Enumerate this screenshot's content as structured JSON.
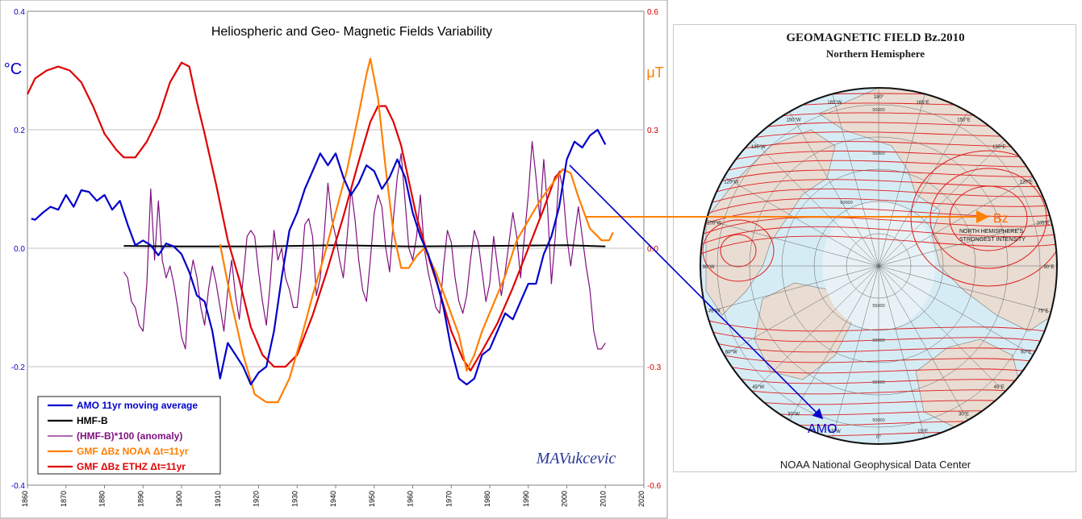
{
  "chart_data": [
    {
      "type": "line",
      "title": "Heliospheric and Geo- Magnetic Fields Variability",
      "signature": "MAVukcevic",
      "x_ticks": [
        1860,
        1870,
        1880,
        1890,
        1900,
        1910,
        1920,
        1930,
        1940,
        1950,
        1960,
        1970,
        1980,
        1990,
        2000,
        2010,
        2020
      ],
      "xlim": [
        1860,
        2020
      ],
      "left_axis": {
        "label": "°C",
        "ylim": [
          -0.4,
          0.4
        ],
        "ticks": [
          -0.4,
          -0.2,
          0.0,
          0.2,
          0.4
        ],
        "tick_labels": [
          "-0.4",
          "-0.2",
          "0.0",
          "0.2",
          "0.4"
        ]
      },
      "right_axis": {
        "label": "μT",
        "ylim": [
          -0.6,
          0.6
        ],
        "ticks": [
          -0.6,
          -0.3,
          0.0,
          0.3,
          0.6
        ],
        "tick_labels": [
          "-0.6",
          "-0.3",
          "0.0",
          "0.3",
          "0.6"
        ]
      },
      "grid": true,
      "legend_position": "bottom-left",
      "series": [
        {
          "name": "AMO 11yr moving average",
          "color": "#0000cc",
          "axis": "left",
          "x": [
            1861,
            1862,
            1864,
            1866,
            1868,
            1870,
            1872,
            1874,
            1876,
            1878,
            1880,
            1882,
            1884,
            1886,
            1888,
            1890,
            1892,
            1894,
            1896,
            1898,
            1900,
            1902,
            1904,
            1906,
            1908,
            1910,
            1912,
            1914,
            1916,
            1918,
            1920,
            1922,
            1924,
            1926,
            1928,
            1930,
            1932,
            1934,
            1936,
            1938,
            1940,
            1942,
            1944,
            1946,
            1948,
            1950,
            1952,
            1954,
            1956,
            1958,
            1960,
            1962,
            1964,
            1966,
            1968,
            1970,
            1972,
            1974,
            1976,
            1978,
            1980,
            1982,
            1984,
            1986,
            1988,
            1990,
            1992,
            1994,
            1996,
            1998,
            2000,
            2002,
            2004,
            2006,
            2008,
            2010
          ],
          "y": [
            0.05,
            0.048,
            0.06,
            0.07,
            0.065,
            0.09,
            0.07,
            0.098,
            0.095,
            0.08,
            0.09,
            0.065,
            0.08,
            0.04,
            0.005,
            0.013,
            0.005,
            -0.012,
            0.008,
            0.003,
            -0.01,
            -0.04,
            -0.08,
            -0.09,
            -0.14,
            -0.22,
            -0.16,
            -0.18,
            -0.2,
            -0.23,
            -0.21,
            -0.2,
            -0.14,
            -0.05,
            0.03,
            0.06,
            0.1,
            0.13,
            0.16,
            0.14,
            0.16,
            0.12,
            0.09,
            0.11,
            0.14,
            0.13,
            0.1,
            0.12,
            0.15,
            0.12,
            0.06,
            0.02,
            -0.01,
            -0.05,
            -0.1,
            -0.17,
            -0.22,
            -0.23,
            -0.22,
            -0.18,
            -0.17,
            -0.14,
            -0.11,
            -0.12,
            -0.09,
            -0.06,
            -0.06,
            -0.01,
            0.02,
            0.07,
            0.15,
            0.18,
            0.17,
            0.19,
            0.2,
            0.175
          ]
        },
        {
          "name": "HMF-B",
          "color": "#000000",
          "axis": "left",
          "x": [
            1885,
            1900,
            1920,
            1940,
            1960,
            1980,
            2000,
            2010
          ],
          "y": [
            0.004,
            0.003,
            0.003,
            0.005,
            0.003,
            0.004,
            0.005,
            0.003
          ]
        },
        {
          "name": "(HMF-B)*100 (anomaly)",
          "color": "#7f0f7e",
          "axis": "left",
          "x": [
            1885,
            1886,
            1887,
            1888,
            1889,
            1890,
            1891,
            1892,
            1893,
            1894,
            1895,
            1896,
            1897,
            1898,
            1899,
            1900,
            1901,
            1902,
            1903,
            1904,
            1905,
            1906,
            1907,
            1908,
            1909,
            1910,
            1911,
            1912,
            1913,
            1914,
            1915,
            1916,
            1917,
            1918,
            1919,
            1920,
            1921,
            1922,
            1923,
            1924,
            1925,
            1926,
            1927,
            1928,
            1929,
            1930,
            1931,
            1932,
            1933,
            1934,
            1935,
            1936,
            1937,
            1938,
            1939,
            1940,
            1941,
            1942,
            1943,
            1944,
            1945,
            1946,
            1947,
            1948,
            1949,
            1950,
            1951,
            1952,
            1953,
            1954,
            1955,
            1956,
            1957,
            1958,
            1959,
            1960,
            1961,
            1962,
            1963,
            1964,
            1965,
            1966,
            1967,
            1968,
            1969,
            1970,
            1971,
            1972,
            1973,
            1974,
            1975,
            1976,
            1977,
            1978,
            1979,
            1980,
            1981,
            1982,
            1983,
            1984,
            1985,
            1986,
            1987,
            1988,
            1989,
            1990,
            1991,
            1992,
            1993,
            1994,
            1995,
            1996,
            1997,
            1998,
            1999,
            2000,
            2001,
            2002,
            2003,
            2004,
            2005,
            2006,
            2007,
            2008,
            2009,
            2010
          ],
          "y": [
            -0.04,
            -0.05,
            -0.09,
            -0.1,
            -0.13,
            -0.14,
            -0.06,
            0.1,
            -0.02,
            0.08,
            -0.02,
            -0.05,
            -0.03,
            -0.06,
            -0.1,
            -0.15,
            -0.17,
            -0.06,
            -0.02,
            -0.05,
            -0.1,
            -0.13,
            -0.07,
            -0.03,
            -0.06,
            -0.1,
            -0.14,
            -0.07,
            -0.02,
            -0.08,
            -0.12,
            -0.05,
            0.02,
            0.03,
            0.02,
            -0.04,
            -0.09,
            -0.13,
            -0.06,
            0.03,
            -0.02,
            0.0,
            -0.05,
            -0.07,
            -0.1,
            -0.1,
            -0.04,
            0.04,
            0.05,
            0.02,
            -0.08,
            -0.05,
            0.02,
            0.11,
            0.05,
            0.02,
            -0.02,
            -0.05,
            0.02,
            0.1,
            0.05,
            -0.02,
            -0.07,
            -0.09,
            -0.02,
            0.06,
            0.09,
            0.07,
            0.0,
            -0.04,
            0.05,
            0.12,
            0.16,
            0.08,
            0.0,
            -0.02,
            0.02,
            0.09,
            0.0,
            -0.04,
            -0.07,
            -0.1,
            -0.11,
            -0.03,
            0.03,
            0.01,
            -0.05,
            -0.09,
            -0.11,
            -0.08,
            -0.02,
            0.03,
            0.01,
            -0.04,
            -0.09,
            -0.06,
            0.02,
            -0.03,
            -0.08,
            -0.04,
            0.01,
            0.06,
            0.02,
            -0.05,
            0.02,
            0.09,
            0.18,
            0.12,
            0.05,
            0.15,
            0.07,
            -0.06,
            0.02,
            0.13,
            0.1,
            0.02,
            -0.03,
            0.02,
            0.07,
            0.02,
            -0.03,
            -0.07,
            -0.14,
            -0.17,
            -0.17,
            -0.16
          ]
        },
        {
          "name": "GMF ΔBz NOAA   Δt=11yr",
          "color": "#ff7f00",
          "axis": "right",
          "x": [
            1910,
            1913,
            1916,
            1919,
            1922,
            1925,
            1928,
            1931,
            1934,
            1937,
            1940,
            1943,
            1946,
            1948,
            1949,
            1951,
            1953,
            1955,
            1957,
            1959,
            1961,
            1963,
            1966,
            1969,
            1972,
            1974,
            1976,
            1978,
            1981,
            1984,
            1987,
            1990,
            1993,
            1996,
            1999,
            2001,
            2003,
            2006,
            2009,
            2011,
            2012
          ],
          "y": [
            0.01,
            -0.14,
            -0.27,
            -0.37,
            -0.39,
            -0.39,
            -0.33,
            -0.23,
            -0.12,
            -0.02,
            0.09,
            0.2,
            0.34,
            0.44,
            0.48,
            0.38,
            0.2,
            0.04,
            -0.05,
            -0.05,
            -0.02,
            0.0,
            -0.06,
            -0.14,
            -0.22,
            -0.31,
            -0.27,
            -0.21,
            -0.14,
            -0.07,
            0.02,
            0.07,
            0.12,
            0.16,
            0.2,
            0.19,
            0.13,
            0.05,
            0.02,
            0.02,
            0.04
          ]
        },
        {
          "name": "GMF ΔBz ETHZ     Δt=11yr",
          "color": "#e00000",
          "axis": "right",
          "x": [
            1860,
            1862,
            1865,
            1868,
            1871,
            1874,
            1877,
            1880,
            1883,
            1885,
            1888,
            1891,
            1894,
            1897,
            1900,
            1902,
            1904,
            1906,
            1909,
            1912,
            1915,
            1918,
            1921,
            1924,
            1927,
            1930,
            1934,
            1938,
            1942,
            1946,
            1949,
            1951,
            1953,
            1955,
            1957,
            1959,
            1961,
            1964,
            1967,
            1970,
            1973,
            1975,
            1978,
            1982,
            1986,
            1990,
            1994,
            1997,
            1999
          ],
          "y": [
            0.39,
            0.43,
            0.45,
            0.46,
            0.45,
            0.42,
            0.36,
            0.29,
            0.25,
            0.23,
            0.23,
            0.27,
            0.33,
            0.42,
            0.47,
            0.46,
            0.37,
            0.29,
            0.16,
            0.02,
            -0.08,
            -0.2,
            -0.27,
            -0.3,
            -0.3,
            -0.27,
            -0.17,
            -0.05,
            0.08,
            0.22,
            0.32,
            0.36,
            0.36,
            0.32,
            0.26,
            0.17,
            0.08,
            -0.02,
            -0.11,
            -0.21,
            -0.28,
            -0.31,
            -0.26,
            -0.19,
            -0.1,
            0.0,
            0.1,
            0.18,
            0.2
          ]
        }
      ]
    }
  ],
  "map": {
    "title": "GEOMAGNETIC FIELD Bz.2010",
    "subtitle": "Northern Hemisphere",
    "footer": "NOAA National Geophysical Data Center",
    "bz_label": "Bz",
    "note_line1": "NORTH HEMISPHERE'S",
    "note_line2": "STRONGEST INTENSITY",
    "amo_label": "AMO",
    "longitude_labels": [
      "180°",
      "165°E",
      "150°E",
      "135°E",
      "120°E",
      "105°E",
      "90°E",
      "75°E",
      "60°E",
      "45°E",
      "30°E",
      "15°E",
      "0°",
      "15°W",
      "30°W",
      "45°W",
      "60°W",
      "75°W",
      "90°W",
      "105°W",
      "120°W",
      "135°W",
      "150°W",
      "165°W"
    ],
    "contour_labels": [
      "50000",
      "55000",
      "60000",
      "55000",
      "50000",
      "55000",
      "50000"
    ],
    "colors": {
      "land": "#e9dcd2",
      "ocean": "#d6ecf5",
      "ice": "#e8f2f6",
      "contour": "#e01b1b",
      "grid": "#666666",
      "rim": "#111111"
    }
  }
}
